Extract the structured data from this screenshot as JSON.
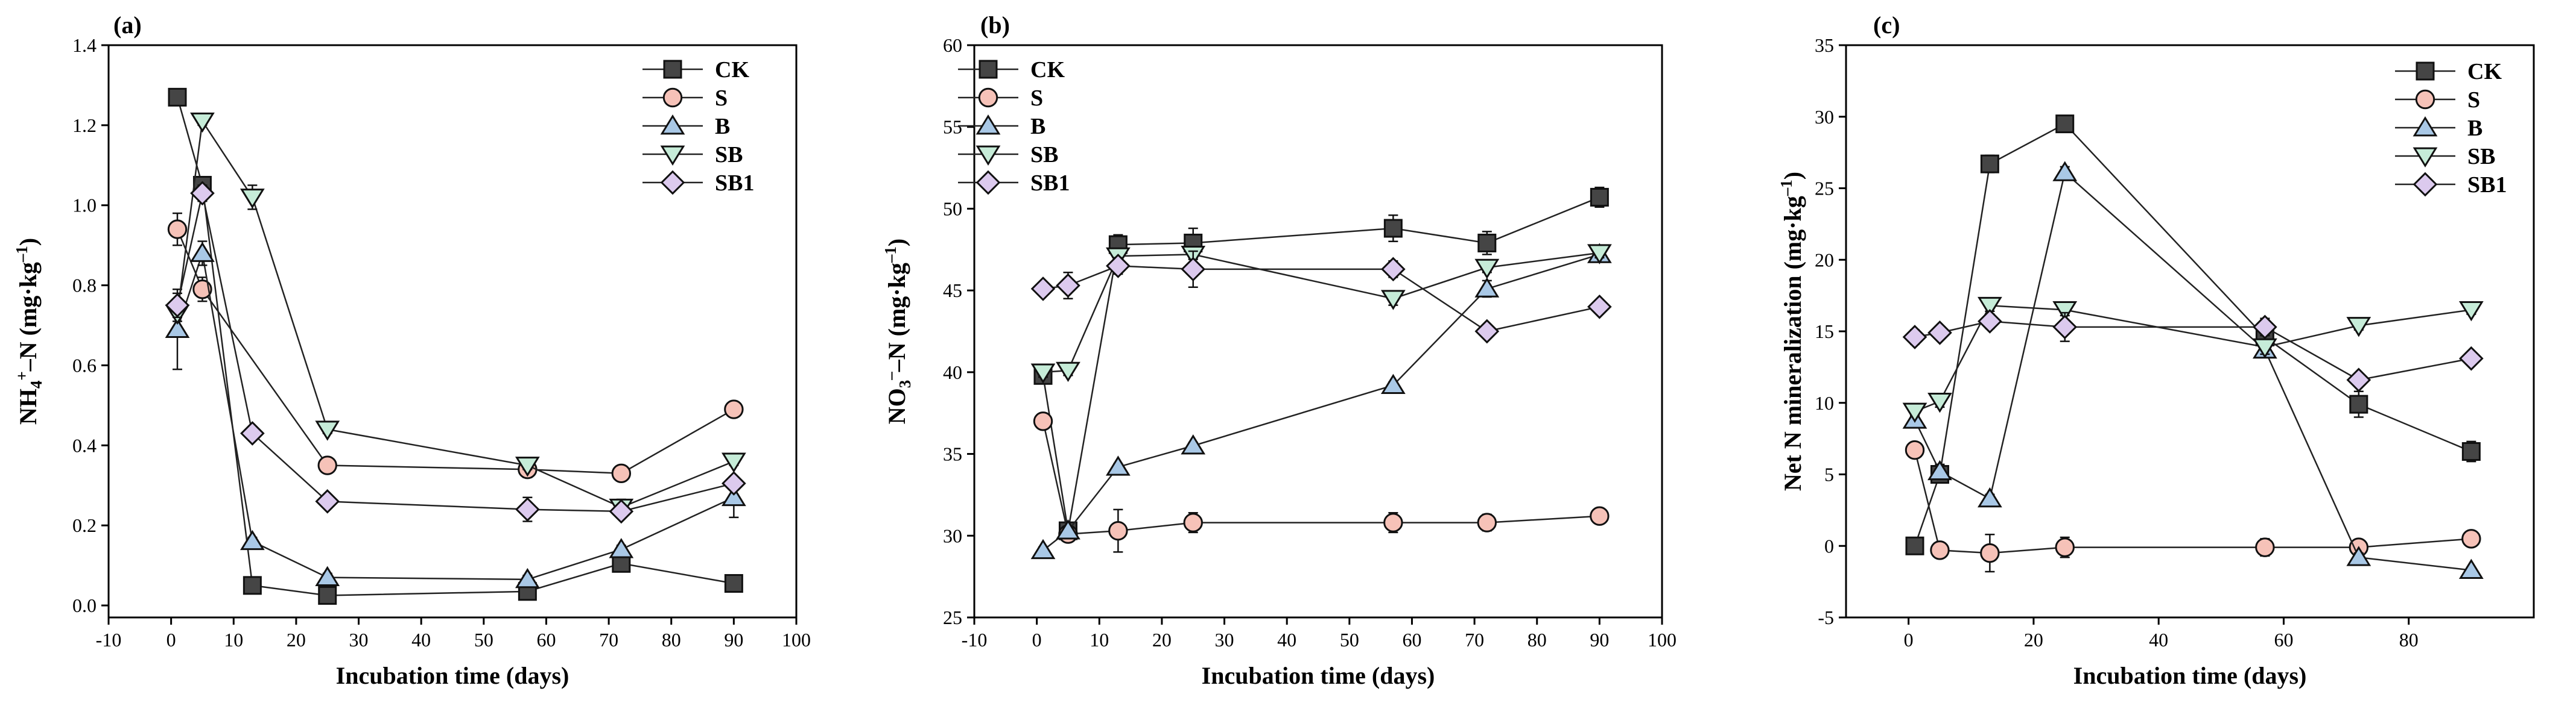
{
  "figure": {
    "panel_count": 3
  },
  "chart_data": [
    {
      "type": "line",
      "panel_label": "(a)",
      "xlabel": "Incubation time (days)",
      "ylabel_parts": {
        "base": "NH",
        "sub1": "4",
        "sup1": "+",
        "mid": "–N (mg·kg",
        "sup2": "–1",
        "end": ")"
      },
      "xlim": [
        -10,
        100
      ],
      "ylim": [
        -0.03,
        1.4
      ],
      "xticks": [
        -10,
        0,
        10,
        20,
        30,
        40,
        50,
        60,
        70,
        80,
        90,
        100
      ],
      "yticks": [
        0.0,
        0.2,
        0.4,
        0.6,
        0.8,
        1.0,
        1.2,
        1.4
      ],
      "ytick_labels": [
        "0.0",
        "0.2",
        "0.4",
        "0.6",
        "0.8",
        "1.0",
        "1.2",
        "1.4"
      ],
      "x": [
        1,
        5,
        13,
        25,
        57,
        72,
        90
      ],
      "legend": [
        "CK",
        "S",
        "B",
        "SB",
        "SB1"
      ],
      "series": [
        {
          "name": "CK",
          "values": [
            1.27,
            1.05,
            0.05,
            0.025,
            0.035,
            0.105,
            0.055
          ],
          "errors": [
            0.01,
            0.02,
            0.01,
            0.01,
            0.01,
            0.02,
            0.01
          ]
        },
        {
          "name": "S",
          "values": [
            0.94,
            0.79,
            null,
            0.35,
            0.34,
            0.33,
            0.49
          ],
          "errors": [
            0.04,
            0.03,
            0,
            0.01,
            0.02,
            0.01,
            0.01
          ]
        },
        {
          "name": "B",
          "values": [
            0.69,
            0.88,
            0.16,
            0.07,
            0.065,
            0.14,
            0.27
          ],
          "errors": [
            0.1,
            0.03,
            0.01,
            0.01,
            0.01,
            0.01,
            0.05
          ]
        },
        {
          "name": "SB",
          "values": [
            0.73,
            1.21,
            1.02,
            0.44,
            0.35,
            0.245,
            0.36
          ],
          "errors": [
            0.02,
            0.01,
            0.03,
            0.01,
            0.01,
            0.02,
            0.01
          ]
        },
        {
          "name": "SB1",
          "values": [
            0.75,
            1.03,
            0.43,
            0.26,
            0.24,
            0.235,
            0.305
          ],
          "errors": [
            0.03,
            0.02,
            0.01,
            0.01,
            0.03,
            0.01,
            0.01
          ]
        }
      ]
    },
    {
      "type": "line",
      "panel_label": "(b)",
      "xlabel": "Incubation time (days)",
      "ylabel_parts": {
        "base": "NO",
        "sub1": "3",
        "sup1": "–",
        "mid": "–N (mg·kg",
        "sup2": "–1",
        "end": ")"
      },
      "xlim": [
        -10,
        100
      ],
      "ylim": [
        25,
        60
      ],
      "xticks": [
        -10,
        0,
        10,
        20,
        30,
        40,
        50,
        60,
        70,
        80,
        90,
        100
      ],
      "yticks": [
        25,
        30,
        35,
        40,
        45,
        50,
        55,
        60
      ],
      "ytick_labels": [
        "25",
        "30",
        "35",
        "40",
        "45",
        "50",
        "55",
        "60"
      ],
      "x": [
        1,
        5,
        13,
        25,
        57,
        72,
        90
      ],
      "legend": [
        "CK",
        "S",
        "B",
        "SB",
        "SB1"
      ],
      "series": [
        {
          "name": "CK",
          "values": [
            39.8,
            30.3,
            47.8,
            47.9,
            48.8,
            47.9,
            50.7
          ],
          "errors": [
            0.3,
            0.3,
            0.6,
            0.9,
            0.8,
            0.7,
            0.6
          ]
        },
        {
          "name": "S",
          "values": [
            37.0,
            30.1,
            30.3,
            30.8,
            30.8,
            30.8,
            31.2
          ],
          "errors": [
            0.2,
            0.3,
            1.3,
            0.6,
            0.6,
            0.5,
            0.3
          ]
        },
        {
          "name": "B",
          "values": [
            29.1,
            30.3,
            34.2,
            35.5,
            39.2,
            45.1,
            47.2
          ],
          "errors": [
            0.2,
            0.2,
            0.2,
            0.2,
            0.2,
            0.5,
            0.3
          ]
        },
        {
          "name": "SB",
          "values": [
            40.0,
            40.1,
            47.1,
            47.2,
            44.5,
            46.4,
            47.3
          ],
          "errors": [
            0.3,
            0.3,
            0.3,
            0.3,
            0.4,
            0.3,
            0.3
          ]
        },
        {
          "name": "SB1",
          "values": [
            45.1,
            45.3,
            46.5,
            46.3,
            46.3,
            42.5,
            44.0
          ],
          "errors": [
            0.3,
            0.8,
            0.5,
            1.1,
            0.5,
            0.3,
            0.3
          ]
        }
      ]
    },
    {
      "type": "line",
      "panel_label": "(c)",
      "xlabel": "Incubation time (days)",
      "ylabel_parts": {
        "base": "Net N mineralization (mg·kg",
        "sup2": "–1",
        "end": ")"
      },
      "xlim": [
        -10,
        100
      ],
      "ylim": [
        -5,
        35
      ],
      "xticks": [
        0,
        20,
        40,
        60,
        80
      ],
      "yticks": [
        -5,
        0,
        5,
        10,
        15,
        20,
        25,
        30,
        35
      ],
      "ytick_labels": [
        "-5",
        "0",
        "5",
        "10",
        "15",
        "20",
        "25",
        "30",
        "35"
      ],
      "x": [
        1,
        5,
        13,
        25,
        57,
        72,
        90
      ],
      "legend": [
        "CK",
        "S",
        "B",
        "SB",
        "SB1"
      ],
      "series": [
        {
          "name": "CK",
          "values": [
            0.0,
            5.0,
            26.7,
            29.5,
            14.6,
            9.9,
            6.6
          ],
          "errors": [
            0.2,
            0.4,
            0.6,
            0.5,
            0.5,
            0.9,
            0.7
          ]
        },
        {
          "name": "S",
          "values": [
            6.7,
            -0.3,
            -0.5,
            -0.1,
            -0.1,
            -0.1,
            0.5
          ],
          "errors": [
            0.5,
            0.3,
            1.3,
            0.7,
            0.6,
            0.3,
            0.3
          ]
        },
        {
          "name": "B",
          "values": [
            8.8,
            5.2,
            3.3,
            26.1,
            13.7,
            -0.8,
            -1.7
          ],
          "errors": [
            0.4,
            0.5,
            0.3,
            0.4,
            0.4,
            0.3,
            0.2
          ]
        },
        {
          "name": "SB",
          "values": [
            9.4,
            10.1,
            16.8,
            16.5,
            13.9,
            15.4,
            16.5
          ],
          "errors": [
            0.3,
            0.4,
            0.4,
            0.4,
            0.5,
            0.3,
            0.3
          ]
        },
        {
          "name": "SB1",
          "values": [
            14.6,
            14.9,
            15.7,
            15.3,
            15.3,
            11.6,
            13.1
          ],
          "errors": [
            0.5,
            0.4,
            0.5,
            1.0,
            0.6,
            0.4,
            0.4
          ]
        }
      ]
    }
  ],
  "styles": {
    "CK": {
      "marker": "square",
      "fill": "#454545"
    },
    "S": {
      "marker": "circle",
      "fill": "#f6c2b8"
    },
    "B": {
      "marker": "triangle-up",
      "fill": "#a9c8e6"
    },
    "SB": {
      "marker": "triangle-down",
      "fill": "#c6ecd8"
    },
    "SB1": {
      "marker": "diamond",
      "fill": "#dccaee"
    },
    "line_color": "#222222",
    "axis_color": "#000000"
  }
}
